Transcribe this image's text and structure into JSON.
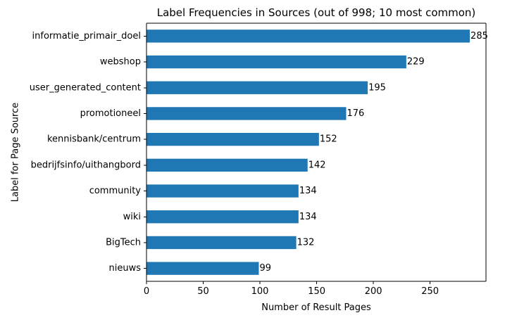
{
  "chart_data": {
    "type": "bar",
    "orientation": "horizontal",
    "title": "Label Frequencies in Sources (out of 998; 10 most common)",
    "xlabel": "Number of Result Pages",
    "ylabel": "Label for Page Source",
    "categories": [
      "informatie_primair_doel",
      "webshop",
      "user_generated_content",
      "promotioneel",
      "kennisbank/centrum",
      "bedrijfsinfo/uithangbord",
      "community",
      "wiki",
      "BigTech",
      "nieuws"
    ],
    "values": [
      285,
      229,
      195,
      176,
      152,
      142,
      134,
      134,
      132,
      99
    ],
    "xlim": [
      0,
      299.25
    ],
    "xticks": [
      0,
      50,
      100,
      150,
      200,
      250
    ],
    "grid": false,
    "bar_color": "#1f77b4",
    "data_labels": true
  }
}
